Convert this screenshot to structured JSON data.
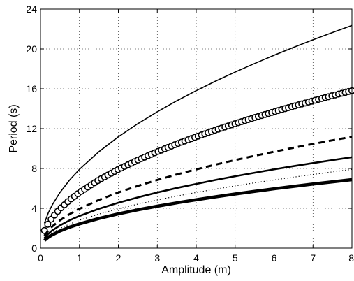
{
  "chart_data": {
    "type": "line",
    "title": "",
    "xlabel": "Amplitude (m)",
    "ylabel": "Period (s)",
    "xlim": [
      0,
      8
    ],
    "ylim": [
      0,
      24
    ],
    "xticks": [
      0,
      1,
      2,
      3,
      4,
      5,
      6,
      7,
      8
    ],
    "yticks": [
      0,
      4,
      8,
      12,
      16,
      20,
      24
    ],
    "grid": true,
    "x": [
      0.1,
      0.2,
      0.3,
      0.5,
      0.75,
      1,
      1.5,
      2,
      2.5,
      3,
      3.5,
      4,
      4.5,
      5,
      5.5,
      6,
      6.5,
      7,
      7.5,
      8
    ],
    "series": [
      {
        "style": "thin-solid",
        "values": [
          2.5,
          3.54,
          4.33,
          5.59,
          6.85,
          7.91,
          9.68,
          11.18,
          12.5,
          13.69,
          14.79,
          15.81,
          16.77,
          17.68,
          18.54,
          19.37,
          20.16,
          20.92,
          21.65,
          22.36
        ]
      },
      {
        "style": "circles",
        "values": [
          1.77,
          2.5,
          3.06,
          3.95,
          4.84,
          5.59,
          6.85,
          7.91,
          8.84,
          9.68,
          10.46,
          11.18,
          11.86,
          12.5,
          13.11,
          13.69,
          14.25,
          14.79,
          15.31,
          15.81
        ]
      },
      {
        "style": "dashed",
        "values": [
          1.25,
          1.77,
          2.17,
          2.8,
          3.42,
          3.95,
          4.84,
          5.59,
          6.25,
          6.85,
          7.4,
          7.91,
          8.39,
          8.84,
          9.27,
          9.68,
          10.08,
          10.46,
          10.83,
          11.18
        ]
      },
      {
        "style": "medium-solid",
        "values": [
          1.02,
          1.44,
          1.77,
          2.28,
          2.8,
          3.23,
          3.95,
          4.56,
          5.1,
          5.59,
          6.04,
          6.45,
          6.85,
          7.22,
          7.57,
          7.91,
          8.23,
          8.54,
          8.84,
          9.13
        ]
      },
      {
        "style": "dotted",
        "values": [
          0.89,
          1.25,
          1.53,
          1.98,
          2.42,
          2.8,
          3.42,
          3.95,
          4.42,
          4.84,
          5.23,
          5.59,
          5.93,
          6.25,
          6.56,
          6.85,
          7.13,
          7.4,
          7.66,
          7.91
        ]
      },
      {
        "style": "thick-solid",
        "values": [
          0.77,
          1.09,
          1.33,
          1.72,
          2.11,
          2.43,
          2.98,
          3.44,
          3.85,
          4.21,
          4.55,
          4.86,
          5.16,
          5.44,
          5.7,
          5.96,
          6.2,
          6.44,
          6.66,
          6.88
        ]
      }
    ]
  }
}
